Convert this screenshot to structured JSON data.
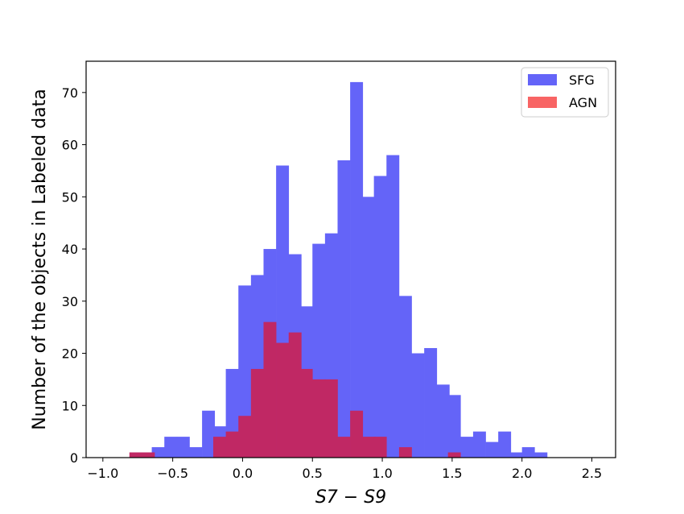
{
  "chart_data": {
    "type": "bar",
    "xlabel": "S7 − S9",
    "ylabel": "Number of the objects in Labeled data",
    "xlim": [
      -1.12,
      2.67
    ],
    "ylim": [
      0,
      76
    ],
    "bin_width": 0.0884,
    "xticks": [
      {
        "value": -1.0,
        "label": "−1.0"
      },
      {
        "value": -0.5,
        "label": "−0.5"
      },
      {
        "value": 0.0,
        "label": "0.0"
      },
      {
        "value": 0.5,
        "label": "0.5"
      },
      {
        "value": 1.0,
        "label": "1.0"
      },
      {
        "value": 1.5,
        "label": "1.5"
      },
      {
        "value": 2.0,
        "label": "2.0"
      },
      {
        "value": 2.5,
        "label": "2.5"
      }
    ],
    "yticks": [
      {
        "value": 0,
        "label": "0"
      },
      {
        "value": 10,
        "label": "10"
      },
      {
        "value": 20,
        "label": "20"
      },
      {
        "value": 30,
        "label": "30"
      },
      {
        "value": 40,
        "label": "40"
      },
      {
        "value": 50,
        "label": "50"
      },
      {
        "value": 60,
        "label": "60"
      },
      {
        "value": 70,
        "label": "70"
      }
    ],
    "legend_position": "top-right",
    "series": [
      {
        "name": "SFG",
        "color": "#6464f8",
        "bins": [
          {
            "x": -0.65,
            "value": 2
          },
          {
            "x": -0.56,
            "value": 4
          },
          {
            "x": -0.47,
            "value": 4
          },
          {
            "x": -0.38,
            "value": 2
          },
          {
            "x": -0.29,
            "value": 9
          },
          {
            "x": -0.21,
            "value": 6
          },
          {
            "x": -0.12,
            "value": 17
          },
          {
            "x": -0.03,
            "value": 33
          },
          {
            "x": 0.06,
            "value": 35
          },
          {
            "x": 0.15,
            "value": 40
          },
          {
            "x": 0.24,
            "value": 56
          },
          {
            "x": 0.33,
            "value": 39
          },
          {
            "x": 0.41,
            "value": 29
          },
          {
            "x": 0.5,
            "value": 41
          },
          {
            "x": 0.59,
            "value": 43
          },
          {
            "x": 0.68,
            "value": 57
          },
          {
            "x": 0.77,
            "value": 72
          },
          {
            "x": 0.86,
            "value": 50
          },
          {
            "x": 0.94,
            "value": 54
          },
          {
            "x": 1.03,
            "value": 58
          },
          {
            "x": 1.12,
            "value": 31
          },
          {
            "x": 1.21,
            "value": 20
          },
          {
            "x": 1.3,
            "value": 21
          },
          {
            "x": 1.39,
            "value": 14
          },
          {
            "x": 1.47,
            "value": 12
          },
          {
            "x": 1.56,
            "value": 4
          },
          {
            "x": 1.65,
            "value": 5
          },
          {
            "x": 1.74,
            "value": 3
          },
          {
            "x": 1.83,
            "value": 5
          },
          {
            "x": 1.92,
            "value": 1
          },
          {
            "x": 2.0,
            "value": 2
          },
          {
            "x": 2.09,
            "value": 1
          }
        ]
      },
      {
        "name": "AGN",
        "color": "#c02864",
        "bins": [
          {
            "x": -0.81,
            "value": 1
          },
          {
            "x": -0.72,
            "value": 1
          },
          {
            "x": -0.21,
            "value": 4
          },
          {
            "x": -0.12,
            "value": 5
          },
          {
            "x": -0.03,
            "value": 8
          },
          {
            "x": 0.06,
            "value": 17
          },
          {
            "x": 0.15,
            "value": 26
          },
          {
            "x": 0.24,
            "value": 22
          },
          {
            "x": 0.33,
            "value": 24
          },
          {
            "x": 0.41,
            "value": 17
          },
          {
            "x": 0.5,
            "value": 15
          },
          {
            "x": 0.59,
            "value": 15
          },
          {
            "x": 0.68,
            "value": 4
          },
          {
            "x": 0.77,
            "value": 9
          },
          {
            "x": 0.86,
            "value": 4
          },
          {
            "x": 0.94,
            "value": 4
          },
          {
            "x": 1.12,
            "value": 2
          },
          {
            "x": 1.47,
            "value": 1
          }
        ]
      }
    ],
    "legend": [
      {
        "label": "SFG",
        "color": "#6464f8"
      },
      {
        "label": "AGN",
        "color": "#f86464"
      }
    ]
  }
}
